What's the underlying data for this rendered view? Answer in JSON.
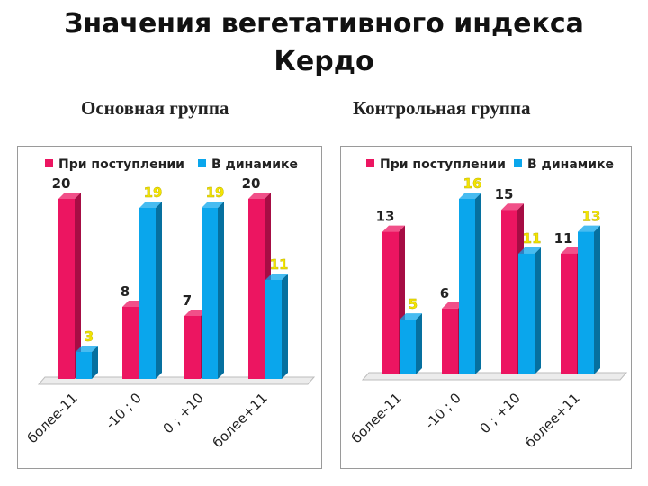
{
  "title_line1": "Значения вегетативного индекса",
  "title_line2": "Кердо",
  "group_labels": [
    "Основная группа",
    "Контрольная группа"
  ],
  "colors": {
    "series1": "#ec1561",
    "series1_side": "#a60d44",
    "series2": "#0aa6ec",
    "series2_side": "#06709f",
    "label_dark": "#222222",
    "label_highlight": "#f4e500"
  },
  "chart_data": [
    {
      "type": "bar",
      "title": "Основная группа",
      "categories": [
        "более-11",
        "-10 ; 0",
        "0 ; +10",
        "более+11"
      ],
      "series": [
        {
          "name": "При поступлении",
          "values": [
            20,
            8,
            7,
            20
          ],
          "labels": [
            "20",
            "8",
            "7",
            "20"
          ],
          "label_highlight": [
            false,
            false,
            false,
            false
          ]
        },
        {
          "name": "В динамике",
          "values": [
            3,
            19,
            19,
            11
          ],
          "labels": [
            "3",
            "19",
            "19",
            "11"
          ],
          "label_highlight": [
            true,
            true,
            true,
            true
          ]
        }
      ],
      "ylim": [
        0,
        20
      ],
      "legend": "top",
      "grid": false
    },
    {
      "type": "bar",
      "title": "Контрольная группа",
      "categories": [
        "более-11",
        "-10 ; 0",
        "0 ; +10",
        "более+11"
      ],
      "series": [
        {
          "name": "При поступлении",
          "values": [
            13,
            6,
            15,
            11
          ],
          "labels": [
            "13",
            "6",
            "15",
            "11"
          ],
          "label_highlight": [
            false,
            false,
            false,
            false
          ]
        },
        {
          "name": "В динамике",
          "values": [
            5,
            16,
            11,
            13
          ],
          "labels": [
            "5",
            "16",
            "11",
            "13"
          ],
          "label_highlight": [
            true,
            true,
            true,
            true
          ]
        }
      ],
      "ylim": [
        0,
        16
      ],
      "legend": "top",
      "grid": false
    }
  ]
}
